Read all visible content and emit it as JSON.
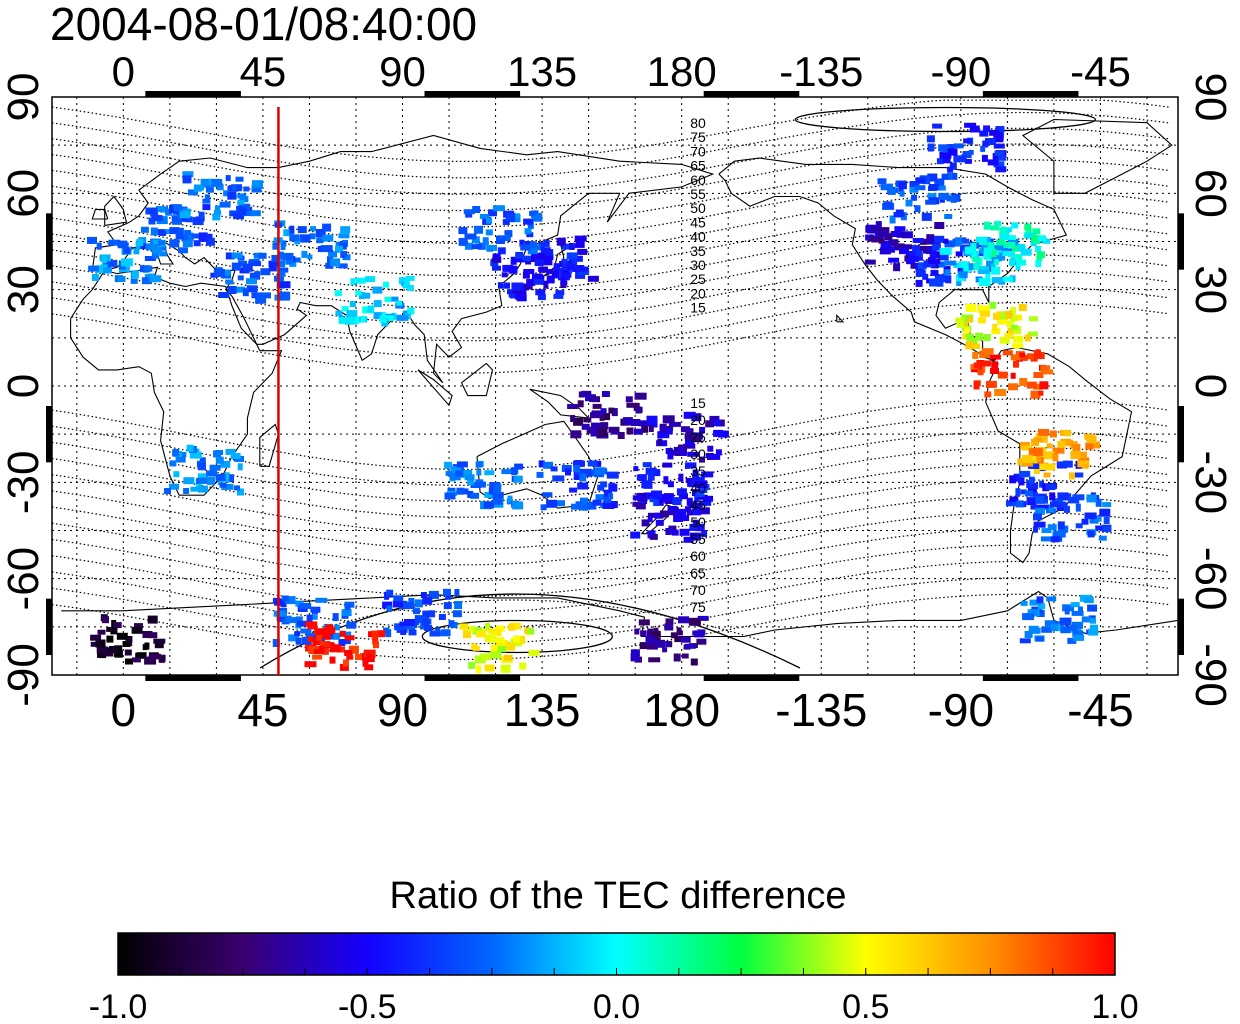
{
  "title": "2004-08-01/08:40:00",
  "map": {
    "lon_ticks": [
      "0",
      "45",
      "90",
      "135",
      "180",
      "-135",
      "-90",
      "-45"
    ],
    "lon_tick_values": [
      0,
      45,
      90,
      135,
      180,
      225,
      270,
      315
    ],
    "lat_ticks": [
      "90",
      "60",
      "30",
      "0",
      "-30",
      "-60",
      "-90"
    ],
    "lat_tick_values": [
      90,
      60,
      30,
      0,
      -30,
      -60,
      -90
    ],
    "lon_range": [
      -23,
      340
    ],
    "lat_range": [
      -90,
      90
    ],
    "grid": "dotted 15-degree graticule",
    "marker_line_lon": 50,
    "marker_line_color": "#dd0000",
    "contour_labels_north": [
      "80",
      "75",
      "70",
      "65",
      "60",
      "55",
      "50",
      "45",
      "40",
      "35",
      "30",
      "25",
      "20",
      "15"
    ],
    "contour_labels_south": [
      "15",
      "20",
      "25",
      "30",
      "35",
      "40",
      "45",
      "50",
      "55",
      "60",
      "65",
      "70",
      "75"
    ],
    "data_clusters": [
      {
        "lon": 15,
        "lat": 50,
        "value": -0.3
      },
      {
        "lon": 30,
        "lat": 60,
        "value": -0.25
      },
      {
        "lon": 0,
        "lat": 40,
        "value": -0.2
      },
      {
        "lon": 60,
        "lat": 45,
        "value": -0.25
      },
      {
        "lon": 40,
        "lat": 35,
        "value": -0.3
      },
      {
        "lon": 80,
        "lat": 28,
        "value": -0.1
      },
      {
        "lon": 25,
        "lat": -25,
        "value": -0.2
      },
      {
        "lon": 130,
        "lat": 35,
        "value": -0.5
      },
      {
        "lon": 138,
        "lat": 40,
        "value": -0.45
      },
      {
        "lon": 120,
        "lat": 50,
        "value": -0.3
      },
      {
        "lon": 145,
        "lat": -30,
        "value": -0.35
      },
      {
        "lon": 115,
        "lat": -30,
        "value": -0.25
      },
      {
        "lon": 175,
        "lat": -40,
        "value": -0.55
      },
      {
        "lon": 175,
        "lat": -30,
        "value": -0.45
      },
      {
        "lon": 155,
        "lat": -8,
        "value": -0.7
      },
      {
        "lon": 180,
        "lat": -15,
        "value": -0.6
      },
      {
        "lon": 250,
        "lat": 45,
        "value": -0.6
      },
      {
        "lon": 265,
        "lat": 40,
        "value": -0.4
      },
      {
        "lon": 275,
        "lat": 40,
        "value": -0.1
      },
      {
        "lon": 285,
        "lat": 45,
        "value": 0.05
      },
      {
        "lon": 255,
        "lat": 60,
        "value": -0.3
      },
      {
        "lon": 270,
        "lat": 75,
        "value": -0.4
      },
      {
        "lon": 280,
        "lat": 20,
        "value": 0.5
      },
      {
        "lon": 285,
        "lat": 5,
        "value": 0.9
      },
      {
        "lon": 295,
        "lat": -30,
        "value": -0.4
      },
      {
        "lon": 300,
        "lat": -20,
        "value": 0.7
      },
      {
        "lon": 305,
        "lat": -40,
        "value": -0.3
      },
      {
        "lon": 60,
        "lat": -72,
        "value": -0.3
      },
      {
        "lon": 95,
        "lat": -70,
        "value": -0.35
      },
      {
        "lon": 175,
        "lat": -78,
        "value": -0.7
      },
      {
        "lon": 0,
        "lat": -78,
        "value": -0.9
      },
      {
        "lon": 70,
        "lat": -80,
        "value": 1.0
      },
      {
        "lon": 120,
        "lat": -80,
        "value": 0.5
      },
      {
        "lon": 300,
        "lat": -72,
        "value": -0.25
      }
    ]
  },
  "colorbar": {
    "title": "Ratio of the TEC difference",
    "tick_labels": [
      "-1.0",
      "-0.5",
      "0.0",
      "0.5",
      "1.0"
    ],
    "tick_values": [
      -1.0,
      -0.5,
      0.0,
      0.5,
      1.0
    ],
    "range": [
      -1.0,
      1.0
    ],
    "colors": [
      "#000000",
      "#3a0070",
      "#1400ff",
      "#0066ff",
      "#00ffff",
      "#00ff40",
      "#ffff00",
      "#ff9000",
      "#ff0000"
    ]
  }
}
